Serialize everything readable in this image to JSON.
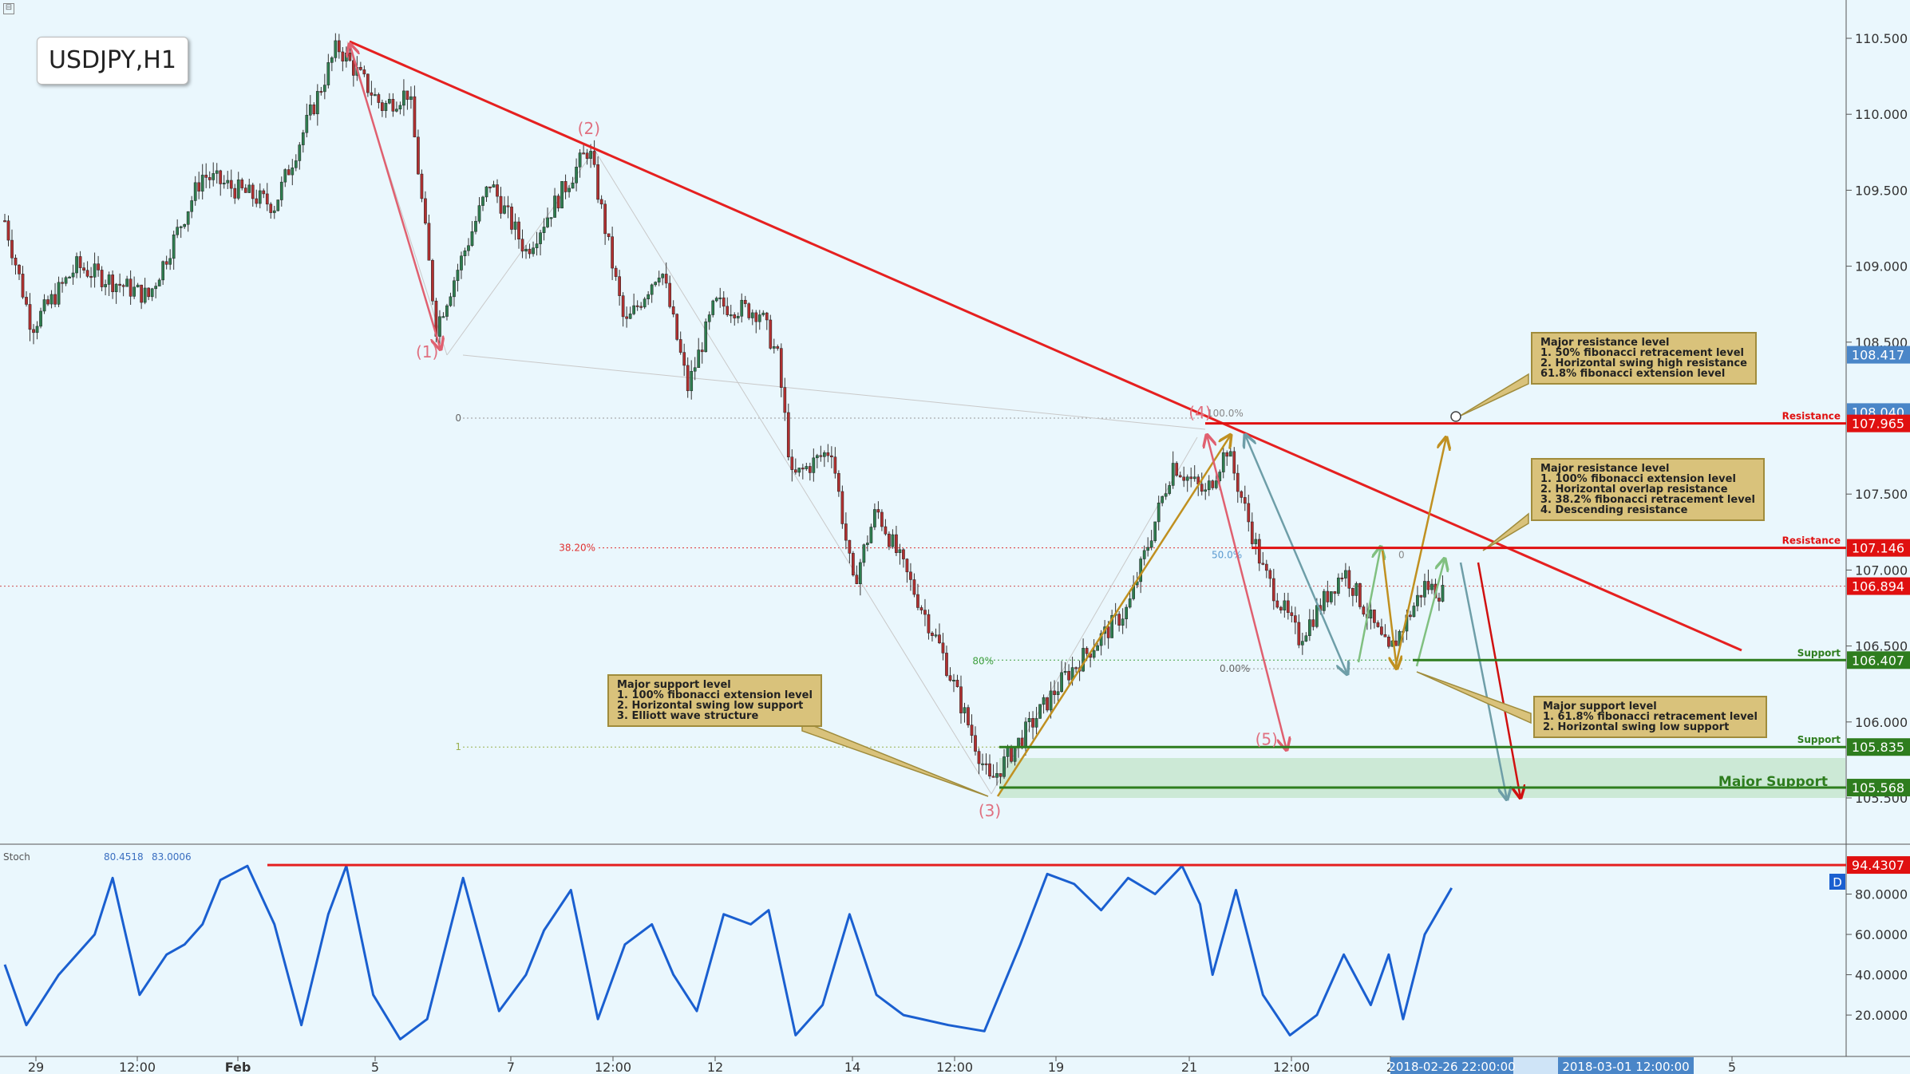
{
  "title": "USDJPY,H1",
  "colors": {
    "background": "#eaf7fd",
    "bull": "#2e7d4f",
    "bear": "#b03030",
    "trendline": "#e52020",
    "support": "#2e7d1e",
    "stoch": "#1a5fd0",
    "axis_label_red": "#e01010",
    "axis_label_green": "#2e7d1e",
    "axis_label_blue": "#4a86c8"
  },
  "chart_data": [
    {
      "type": "candlestick",
      "title": "USDJPY,H1",
      "ylim": [
        105.3,
        110.7
      ],
      "yticks": [
        "110.500",
        "110.000",
        "109.500",
        "109.000",
        "108.500",
        "107.500",
        "107.000",
        "106.500",
        "106.000",
        "105.500"
      ],
      "xticks": [
        "29",
        "12:00",
        "Feb",
        "5",
        "7",
        "12:00",
        "12",
        "14",
        "12:00",
        "19",
        "21",
        "12:00",
        "2",
        "5"
      ],
      "price_path": [
        {
          "i": 0,
          "p": 109.3
        },
        {
          "i": 15,
          "p": 108.6
        },
        {
          "i": 40,
          "p": 109.0
        },
        {
          "i": 80,
          "p": 108.8
        },
        {
          "i": 110,
          "p": 109.6
        },
        {
          "i": 150,
          "p": 109.4
        },
        {
          "i": 185,
          "p": 110.45
        },
        {
          "i": 210,
          "p": 110.05
        },
        {
          "i": 225,
          "p": 110.15
        },
        {
          "i": 240,
          "p": 108.6
        },
        {
          "i": 270,
          "p": 109.55
        },
        {
          "i": 290,
          "p": 109.1
        },
        {
          "i": 325,
          "p": 109.78
        },
        {
          "i": 345,
          "p": 108.6
        },
        {
          "i": 365,
          "p": 109.0
        },
        {
          "i": 380,
          "p": 108.2
        },
        {
          "i": 395,
          "p": 108.75
        },
        {
          "i": 420,
          "p": 108.7
        },
        {
          "i": 430,
          "p": 108.4
        },
        {
          "i": 438,
          "p": 107.6
        },
        {
          "i": 460,
          "p": 107.8
        },
        {
          "i": 472,
          "p": 106.9
        },
        {
          "i": 485,
          "p": 107.4
        },
        {
          "i": 520,
          "p": 106.5
        },
        {
          "i": 548,
          "p": 105.6
        },
        {
          "i": 590,
          "p": 106.3
        },
        {
          "i": 625,
          "p": 106.75
        },
        {
          "i": 650,
          "p": 107.7
        },
        {
          "i": 668,
          "p": 107.5
        },
        {
          "i": 680,
          "p": 107.8
        },
        {
          "i": 700,
          "p": 107.0
        },
        {
          "i": 720,
          "p": 106.55
        },
        {
          "i": 745,
          "p": 107.0
        },
        {
          "i": 770,
          "p": 106.45
        },
        {
          "i": 790,
          "p": 106.9
        },
        {
          "i": 800,
          "p": 106.85
        }
      ],
      "levels": [
        {
          "label": "Resistance",
          "price": 107.965,
          "axis": "107.965",
          "color": "red"
        },
        {
          "label": "Resistance",
          "price": 107.146,
          "axis": "107.146",
          "color": "red"
        },
        {
          "label": "Support",
          "price": 106.407,
          "axis": "106.407",
          "color": "green"
        },
        {
          "label": "Support",
          "price": 105.835,
          "axis": "105.835",
          "color": "green"
        },
        {
          "label": "Major Support",
          "price": 105.568,
          "axis": "105.568",
          "color": "green"
        }
      ],
      "axis_markers": [
        {
          "price": 108.417,
          "label": "108.417",
          "color": "blue"
        },
        {
          "price": 108.04,
          "label": "108.040",
          "color": "blue"
        },
        {
          "price": 106.894,
          "label": "106.894",
          "color": "red"
        }
      ],
      "waves": [
        {
          "label": "(1)",
          "i": 235,
          "price": 108.4
        },
        {
          "label": "(2)",
          "i": 325,
          "price": 109.87
        },
        {
          "label": "(3)",
          "i": 548,
          "price": 105.38
        },
        {
          "label": "(4)",
          "i": 665,
          "price": 108.0
        },
        {
          "label": "(5)",
          "i": 702,
          "price": 105.85
        }
      ],
      "fib_labels": [
        "0",
        "38.20%",
        "1",
        "100.0%",
        "50.0%",
        "0.00%",
        "80%",
        "0"
      ],
      "annotations": [
        {
          "lines": [
            "Major resistance level",
            "1. 50% fibonacci retracement level",
            "2. Horizontal swing high resistance",
            "61.8% fibonacci extension level"
          ]
        },
        {
          "lines": [
            "Major resistance level",
            "1. 100% fibonacci extension level",
            "2. Horizontal overlap resistance",
            "3. 38.2% fibonacci retracement level",
            "4. Descending resistance"
          ]
        },
        {
          "lines": [
            "Major support level",
            "1. 100% fibonacci extension level",
            "2. Horizontal swing low support",
            "3. Elliott wave structure"
          ]
        },
        {
          "lines": [
            "Major support level",
            "1. 61.8% fibonacci retracement level",
            "2. Horizontal swing low support"
          ]
        }
      ]
    },
    {
      "type": "line",
      "title": "Stoch",
      "values_shown": [
        "80.4518",
        "83.0006"
      ],
      "ylim": [
        5,
        100
      ],
      "yticks": [
        "80.0000",
        "60.0000",
        "40.0000",
        "20.0000"
      ],
      "marker": {
        "value": 94.4307,
        "label": "94.4307"
      },
      "badge": "D",
      "series": [
        {
          "x": 0,
          "y": 45
        },
        {
          "x": 12,
          "y": 15
        },
        {
          "x": 30,
          "y": 40
        },
        {
          "x": 50,
          "y": 60
        },
        {
          "x": 60,
          "y": 88
        },
        {
          "x": 75,
          "y": 30
        },
        {
          "x": 90,
          "y": 50
        },
        {
          "x": 100,
          "y": 55
        },
        {
          "x": 110,
          "y": 65
        },
        {
          "x": 120,
          "y": 87
        },
        {
          "x": 135,
          "y": 94
        },
        {
          "x": 150,
          "y": 65
        },
        {
          "x": 165,
          "y": 15
        },
        {
          "x": 180,
          "y": 70
        },
        {
          "x": 190,
          "y": 94
        },
        {
          "x": 205,
          "y": 30
        },
        {
          "x": 220,
          "y": 8
        },
        {
          "x": 235,
          "y": 18
        },
        {
          "x": 255,
          "y": 88
        },
        {
          "x": 275,
          "y": 22
        },
        {
          "x": 290,
          "y": 40
        },
        {
          "x": 300,
          "y": 62
        },
        {
          "x": 315,
          "y": 82
        },
        {
          "x": 330,
          "y": 18
        },
        {
          "x": 345,
          "y": 55
        },
        {
          "x": 360,
          "y": 65
        },
        {
          "x": 372,
          "y": 40
        },
        {
          "x": 385,
          "y": 22
        },
        {
          "x": 400,
          "y": 70
        },
        {
          "x": 415,
          "y": 65
        },
        {
          "x": 425,
          "y": 72
        },
        {
          "x": 440,
          "y": 10
        },
        {
          "x": 455,
          "y": 25
        },
        {
          "x": 470,
          "y": 70
        },
        {
          "x": 485,
          "y": 30
        },
        {
          "x": 500,
          "y": 20
        },
        {
          "x": 525,
          "y": 15
        },
        {
          "x": 545,
          "y": 12
        },
        {
          "x": 565,
          "y": 55
        },
        {
          "x": 580,
          "y": 90
        },
        {
          "x": 595,
          "y": 85
        },
        {
          "x": 610,
          "y": 72
        },
        {
          "x": 625,
          "y": 88
        },
        {
          "x": 640,
          "y": 80
        },
        {
          "x": 655,
          "y": 94
        },
        {
          "x": 665,
          "y": 75
        },
        {
          "x": 672,
          "y": 40
        },
        {
          "x": 685,
          "y": 82
        },
        {
          "x": 700,
          "y": 30
        },
        {
          "x": 715,
          "y": 10
        },
        {
          "x": 730,
          "y": 20
        },
        {
          "x": 745,
          "y": 50
        },
        {
          "x": 760,
          "y": 25
        },
        {
          "x": 770,
          "y": 50
        },
        {
          "x": 778,
          "y": 18
        },
        {
          "x": 790,
          "y": 60
        },
        {
          "x": 805,
          "y": 83
        }
      ]
    }
  ],
  "x_axis_highlights": [
    "2018-02-26 22:00:00",
    "2018-03-01 12:00:00"
  ]
}
